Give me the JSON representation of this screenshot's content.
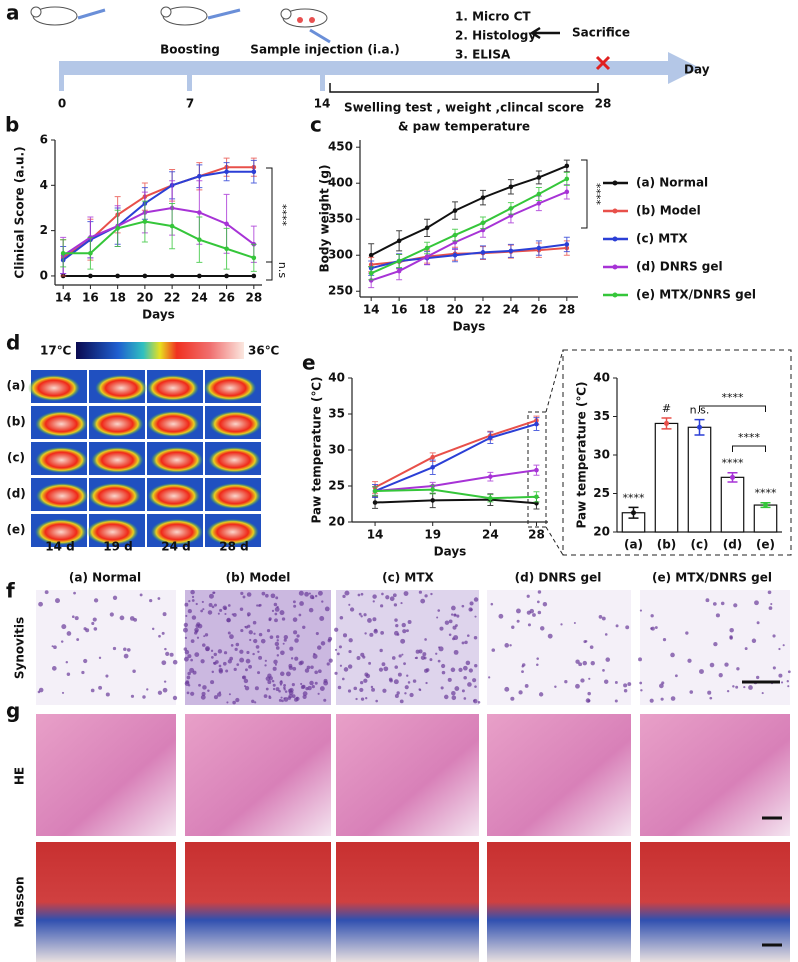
{
  "timeline": {
    "panel_label": "a",
    "events": [
      "Boosting",
      "Sample injection (i.a.)"
    ],
    "analyses": [
      "1. Micro CT",
      "2. Histology",
      "3. ELISA"
    ],
    "endpoint": "Sacrifice",
    "axis_label": "Day",
    "ticks": [
      "0",
      "7",
      "14",
      "28"
    ],
    "period": [
      "Swelling test , weight ,clincal score",
      "& paw temperature"
    ]
  },
  "chart_data": [
    {
      "panel_label": "b",
      "type": "line",
      "x_label": "Days",
      "y_label": "Clinical Score (a.u.)",
      "x": [
        14,
        16,
        18,
        20,
        22,
        24,
        26,
        28
      ],
      "xlim": [
        13.4,
        28.6
      ],
      "xticks": [
        14,
        16,
        18,
        20,
        22,
        24,
        26,
        28
      ],
      "ylim": [
        -0.4,
        6
      ],
      "yticks": [
        0,
        2,
        4,
        6
      ],
      "annotations": [
        "****",
        "n.s"
      ],
      "series": [
        {
          "color": "#111111",
          "values": [
            0,
            0,
            0,
            0,
            0,
            0,
            0,
            0
          ]
        },
        {
          "color": "#e8504a",
          "values": [
            0.8,
            1.6,
            2.7,
            3.5,
            4.0,
            4.4,
            4.8,
            4.8
          ],
          "errors": [
            0.8,
            0.9,
            0.8,
            0.6,
            0.7,
            0.6,
            0.4,
            0.4
          ]
        },
        {
          "color": "#2b3fd6",
          "values": [
            0.7,
            1.6,
            2.2,
            3.2,
            4.0,
            4.4,
            4.6,
            4.6
          ],
          "errors": [
            0.6,
            0.8,
            0.8,
            0.7,
            0.6,
            0.5,
            0.4,
            0.5
          ]
        },
        {
          "color": "#a733d6",
          "values": [
            0.9,
            1.7,
            2.2,
            2.8,
            3.0,
            2.8,
            2.3,
            1.4
          ],
          "errors": [
            0.8,
            0.9,
            0.9,
            0.9,
            1.2,
            1.4,
            1.3,
            0.8
          ]
        },
        {
          "color": "#35c63a",
          "values": [
            1.0,
            1.0,
            2.1,
            2.4,
            2.2,
            1.6,
            1.2,
            0.8
          ],
          "errors": [
            0.6,
            0.7,
            0.8,
            0.9,
            1.0,
            1.0,
            0.9,
            0.6
          ]
        }
      ]
    },
    {
      "panel_label": "c",
      "type": "line",
      "x_label": "Days",
      "y_label": "Body weight (g)",
      "x": [
        14,
        16,
        18,
        20,
        22,
        24,
        26,
        28
      ],
      "xlim": [
        13.2,
        28.8
      ],
      "xticks": [
        14,
        16,
        18,
        20,
        22,
        24,
        26,
        28
      ],
      "ylim": [
        242,
        460
      ],
      "yticks": [
        250,
        300,
        350,
        400,
        450
      ],
      "annotations": [
        "****"
      ],
      "legend": "right",
      "series": [
        {
          "name": "(a) Normal",
          "color": "#111111",
          "values": [
            300,
            320,
            338,
            362,
            380,
            395,
            408,
            424
          ],
          "errors": [
            16,
            14,
            12,
            12,
            10,
            10,
            9,
            8
          ]
        },
        {
          "name": "(b) Model",
          "color": "#e8504a",
          "values": [
            287,
            291,
            298,
            302,
            303,
            305,
            307,
            310
          ],
          "errors": [
            10,
            10,
            9,
            9,
            9,
            9,
            10,
            10
          ]
        },
        {
          "name": "(c) MTX",
          "color": "#2b3fd6",
          "values": [
            282,
            292,
            296,
            300,
            304,
            306,
            310,
            315
          ],
          "errors": [
            10,
            10,
            9,
            9,
            9,
            9,
            10,
            10
          ]
        },
        {
          "name": "(d) DNRS gel",
          "color": "#a733d6",
          "values": [
            265,
            278,
            298,
            318,
            335,
            355,
            372,
            388
          ],
          "errors": [
            10,
            12,
            11,
            10,
            10,
            10,
            10,
            10
          ]
        },
        {
          "name": "(e) MTX/DNRS gel",
          "color": "#35c63a",
          "values": [
            275,
            292,
            310,
            328,
            345,
            365,
            385,
            406
          ],
          "errors": [
            9,
            9,
            8,
            8,
            8,
            8,
            9,
            9
          ]
        }
      ]
    },
    {
      "panel_label": "e",
      "type": "line",
      "x_label": "Days",
      "y_label": "Paw temperature (℃)",
      "x": [
        14,
        19,
        24,
        28
      ],
      "xlim": [
        12,
        29
      ],
      "xticks": [
        14,
        19,
        24,
        28
      ],
      "ylim": [
        20,
        40
      ],
      "yticks": [
        20,
        25,
        30,
        35,
        40
      ],
      "series": [
        {
          "color": "#111111",
          "values": [
            22.7,
            23.0,
            23.1,
            22.6
          ],
          "errors": [
            0.8,
            1.0,
            0.8,
            0.8
          ]
        },
        {
          "color": "#e8504a",
          "values": [
            24.8,
            29.0,
            32.0,
            34.1
          ],
          "errors": [
            0.8,
            0.6,
            0.6,
            0.6
          ]
        },
        {
          "color": "#2b3fd6",
          "values": [
            24.3,
            27.6,
            31.7,
            33.6
          ],
          "errors": [
            0.9,
            1.0,
            0.8,
            0.9
          ]
        },
        {
          "color": "#a733d6",
          "values": [
            24.3,
            25.0,
            26.3,
            27.2
          ],
          "errors": [
            0.6,
            0.5,
            0.6,
            0.7
          ]
        },
        {
          "color": "#35c63a",
          "values": [
            24.3,
            24.5,
            23.3,
            23.5
          ],
          "errors": [
            0.6,
            0.6,
            0.5,
            0.7
          ]
        }
      ]
    },
    {
      "type": "bar",
      "y_label": "Paw temperature (℃)",
      "categories": [
        "(a)",
        "(b)",
        "(c)",
        "(d)",
        "(e)"
      ],
      "values": [
        22.5,
        34.1,
        33.6,
        27.1,
        23.5
      ],
      "errors": [
        0.7,
        0.7,
        1.0,
        0.6,
        0.3
      ],
      "point_colors": [
        "#111111",
        "#e8504a",
        "#2b3fd6",
        "#a733d6",
        "#35c63a"
      ],
      "significance": [
        "****",
        "#",
        "n.s.",
        "****",
        "****"
      ],
      "comparison_labels": [
        "****",
        "****"
      ],
      "ylim": [
        20,
        40
      ],
      "yticks": [
        20,
        25,
        30,
        35,
        40
      ]
    }
  ],
  "thermal": {
    "panel_label": "d",
    "scale_min": "17℃",
    "scale_max": "36℃",
    "rows": [
      "(a)",
      "(b)",
      "(c)",
      "(d)",
      "(e)"
    ],
    "columns": [
      "14 d",
      "19 d",
      "24 d",
      "28 d"
    ]
  },
  "histology": {
    "synovitis": {
      "panel_label": "f",
      "columns": [
        "(a) Normal",
        "(b) Model",
        "(c) MTX",
        "(d) DNRS gel",
        "(e) MTX/DNRS gel"
      ],
      "row_label": "Synovitis"
    },
    "cartilage": {
      "panel_label": "g",
      "row_labels": [
        "HE",
        "Masson"
      ]
    }
  }
}
